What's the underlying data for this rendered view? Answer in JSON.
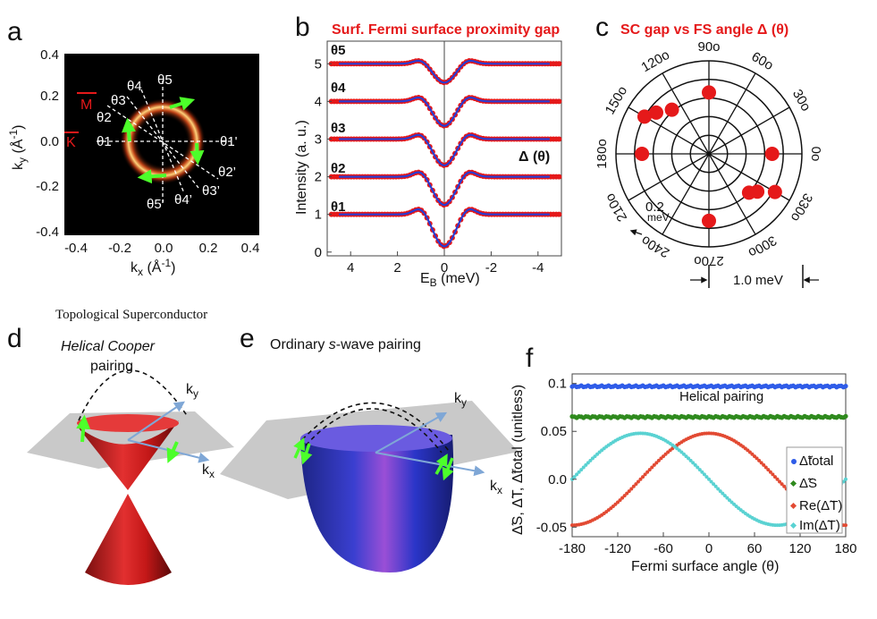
{
  "panels": {
    "a": {
      "label": "a",
      "yaxis": "k",
      "ysub": "y",
      "yunit": "(Å",
      "yexp": "-1",
      "yclose": ")",
      "xaxis": "k",
      "xsub": "x",
      "xunit": "(Å",
      "xexp": "-1",
      "xclose": ")",
      "xticks": [
        "-0.4",
        "-0.2",
        "0.0",
        "0.2",
        "0.4"
      ],
      "yticks": [
        "0.4",
        "0.2",
        "0.0",
        "-0.2",
        "-0.4"
      ],
      "angles": [
        "θ1",
        "θ2",
        "θ3",
        "θ4",
        "θ5",
        "θ1'",
        "θ2’",
        "θ3’",
        "θ4’",
        "θ5’"
      ],
      "points": [
        "M",
        "K"
      ]
    },
    "b": {
      "label": "b",
      "title": "Surf. Fermi surface proximity gap",
      "ylabel": "Intensity (a. u.)",
      "xlabel": "E",
      "xsub": "B",
      "xunit": " (meV)",
      "annotation": "Δ (θ)",
      "xticks": [
        "4",
        "2",
        "0",
        "-2",
        "-4"
      ],
      "yticks": [
        "0",
        "1",
        "2",
        "3",
        "4",
        "5"
      ],
      "curves": [
        "θ1",
        "θ2",
        "θ3",
        "θ4",
        "θ5"
      ]
    },
    "c": {
      "label": "c",
      "title": "SC gap vs FS angle Δ (θ)",
      "angle_labels": [
        "0o",
        "30o",
        "60o",
        "90o",
        "120o",
        "150o",
        "180o",
        "210o",
        "240o",
        "270o",
        "300o",
        "330o"
      ],
      "scale_small": "0.2",
      "scale_small_unit": "meV",
      "scale_large": "1.0 meV"
    },
    "d": {
      "label": "d",
      "header": "Topological Superconductor",
      "title": "Helical Cooper",
      "title2": "pairing",
      "kx": "k",
      "kxsub": "x",
      "ky": "k",
      "kysub": "y"
    },
    "e": {
      "label": "e",
      "title_pre": "Ordinary ",
      "title_em": "s",
      "title_post": "-wave pairing",
      "kx": "k",
      "kxsub": "x",
      "ky": "k",
      "kysub": "y"
    },
    "f": {
      "label": "f",
      "ylabel": "Δ̃S, Δ̃T, Δ̃total (unitless)",
      "xlabel": "Fermi surface angle (θ)",
      "annotation": "Helical pairing",
      "legend": [
        "Δ̃total",
        "Δ̃S",
        "Re(Δ̃T)",
        "Im(Δ̃T)"
      ]
    }
  },
  "colors": {
    "red": "#e5191a",
    "blue": "#2a3bd0",
    "green": "#4cff2a",
    "f_total": "#2f5ce8",
    "f_s": "#2f8a1e",
    "f_re": "#e24a33",
    "f_im": "#5ad2d2"
  },
  "chart_data": [
    {
      "type": "scatter",
      "title": "Surf. Fermi surface proximity gap",
      "xlabel": "E_B (meV)",
      "ylabel": "Intensity (a. u.)",
      "xlim": [
        5,
        -5
      ],
      "ylim": [
        -0.1,
        5.6
      ],
      "xticks": [
        4,
        2,
        0,
        -2,
        -4
      ],
      "yticks": [
        0,
        1,
        2,
        3,
        4,
        5
      ],
      "series": [
        {
          "name": "θ1",
          "offset": 1,
          "depth": 0.85
        },
        {
          "name": "θ2",
          "offset": 2,
          "depth": 0.75
        },
        {
          "name": "θ3",
          "offset": 3,
          "depth": 0.7
        },
        {
          "name": "θ4",
          "offset": 4,
          "depth": 0.65
        },
        {
          "name": "θ5",
          "offset": 5,
          "depth": 0.5
        }
      ],
      "gap_meV": 1.0
    },
    {
      "type": "scatter",
      "title": "SC gap vs FS angle Δ (θ)",
      "r_unit": "meV",
      "r_rings": [
        0.2,
        0.4,
        0.6,
        0.8,
        1.0
      ],
      "points": [
        {
          "theta": 90,
          "r": 0.66
        },
        {
          "theta": 130,
          "r": 0.62
        },
        {
          "theta": 142,
          "r": 0.72
        },
        {
          "theta": 150,
          "r": 0.8
        },
        {
          "theta": 180,
          "r": 0.72
        },
        {
          "theta": 270,
          "r": 0.72
        },
        {
          "theta": 316,
          "r": 0.6
        },
        {
          "theta": 322,
          "r": 0.66
        },
        {
          "theta": 330,
          "r": 0.82
        },
        {
          "theta": 0,
          "r": 0.68
        }
      ]
    },
    {
      "type": "scatter",
      "title": "",
      "xlabel": "Fermi surface angle (θ)",
      "ylabel": "Δ̃S, Δ̃T, Δ̃total (unitless)",
      "xlim": [
        -180,
        180
      ],
      "ylim": [
        -0.06,
        0.11
      ],
      "xticks": [
        -180,
        -120,
        -60,
        0,
        60,
        120,
        180
      ],
      "yticks": [
        0.1,
        0.05,
        0.0,
        -0.05
      ],
      "yticklabels": [
        "0.1",
        "0.05",
        "0.0",
        "-0.05"
      ],
      "series": [
        {
          "name": "Δ̃total",
          "model": "constant",
          "a": 0.097
        },
        {
          "name": "Δ̃S",
          "model": "constant",
          "a": 0.065
        },
        {
          "name": "Re(Δ̃T)",
          "model": "cos",
          "a": 0.048
        },
        {
          "name": "Im(Δ̃T)",
          "model": "-sin",
          "a": 0.048
        }
      ]
    }
  ]
}
